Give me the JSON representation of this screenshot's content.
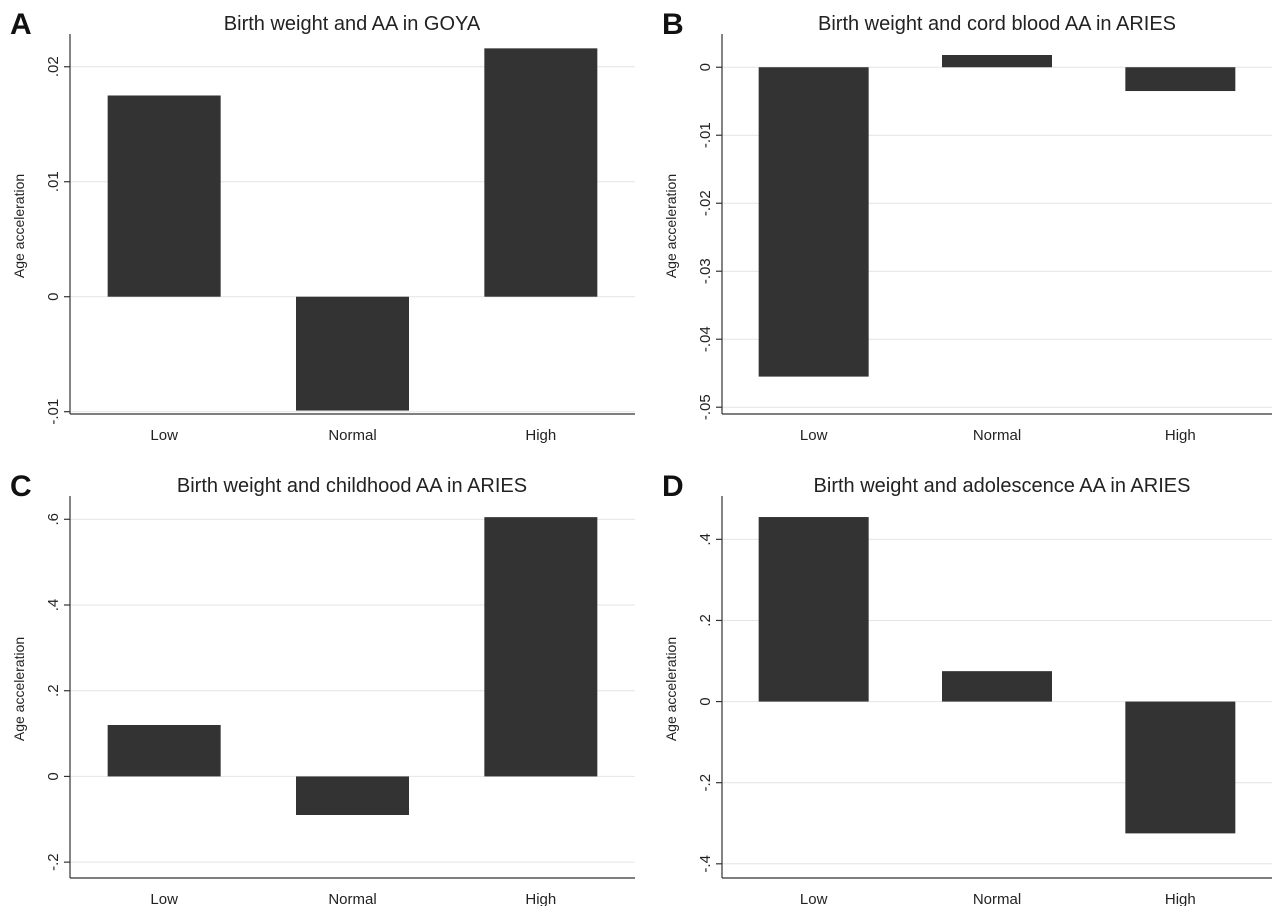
{
  "figure": {
    "bar_color": "#333333",
    "grid_color": "#e4e4e4"
  },
  "chart_data": [
    {
      "type": "bar",
      "panel_label": "A",
      "title": "Birth weight and AA in GOYA",
      "ylabel": "Age acceleration",
      "xlabel": "",
      "categories": [
        "Low",
        "Normal",
        "High"
      ],
      "values": [
        0.0175,
        -0.0099,
        0.0216
      ],
      "ylim": [
        -0.0102,
        0.0225
      ],
      "yticks": [
        -0.01,
        0,
        0.01,
        0.02
      ],
      "ytick_labels": [
        "-.01",
        "0",
        ".01",
        ".02"
      ],
      "grid": true
    },
    {
      "type": "bar",
      "panel_label": "B",
      "title": "Birth weight and cord blood AA in ARIES",
      "ylabel": "Age acceleration",
      "xlabel": "",
      "categories": [
        "Low",
        "Normal",
        "High"
      ],
      "values": [
        -0.0455,
        0.0018,
        -0.0035
      ],
      "ylim": [
        -0.051,
        0.0043
      ],
      "yticks": [
        -0.05,
        -0.04,
        -0.03,
        -0.02,
        -0.01,
        0
      ],
      "ytick_labels": [
        "-.05",
        "-.04",
        "-.03",
        "-.02",
        "-.01",
        "0"
      ],
      "grid": true
    },
    {
      "type": "bar",
      "panel_label": "C",
      "title": "Birth weight and childhood AA in ARIES",
      "ylabel": "Age acceleration",
      "xlabel": "",
      "categories": [
        "Low",
        "Normal",
        "High"
      ],
      "values": [
        0.12,
        -0.09,
        0.605
      ],
      "ylim": [
        -0.237,
        0.645
      ],
      "yticks": [
        -0.2,
        0,
        0.2,
        0.4,
        0.6
      ],
      "ytick_labels": [
        "-.2",
        "0",
        ".2",
        ".4",
        ".6"
      ],
      "grid": true
    },
    {
      "type": "bar",
      "panel_label": "D",
      "title": "Birth weight and adolescence AA in ARIES",
      "ylabel": "Age acceleration",
      "xlabel": "",
      "categories": [
        "Low",
        "Normal",
        "High"
      ],
      "values": [
        0.455,
        0.075,
        -0.325
      ],
      "ylim": [
        -0.435,
        0.497
      ],
      "yticks": [
        -0.4,
        -0.2,
        0,
        0.2,
        0.4
      ],
      "ytick_labels": [
        "-.4",
        "-.2",
        "0",
        ".2",
        ".4"
      ],
      "grid": true
    }
  ]
}
